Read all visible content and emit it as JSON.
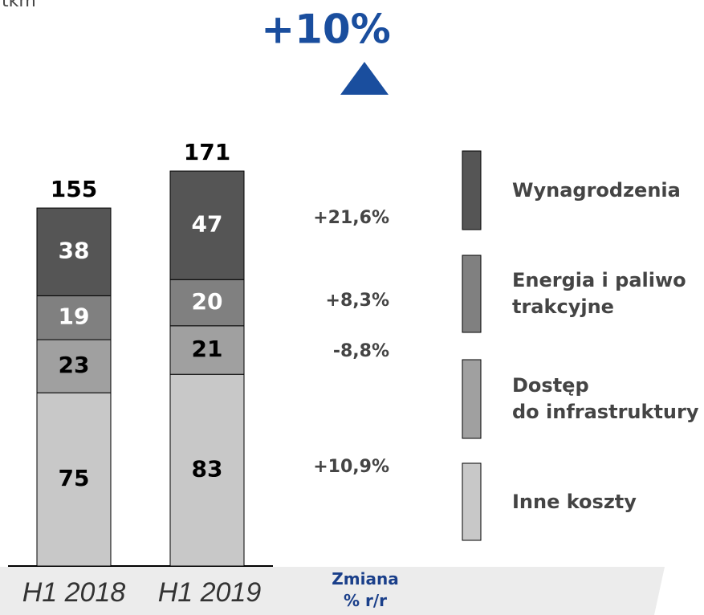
{
  "chart_data": {
    "type": "stacked_bar",
    "subtitle": "tkm",
    "title": "+10%",
    "categories": [
      "H1 2018",
      "H1 2019"
    ],
    "totals": [
      155,
      171
    ],
    "change_header": "Zmiana\n% r/r",
    "series": [
      {
        "name": "Inne koszty",
        "color": "#c8c8c8",
        "label_color": "#000000",
        "values": [
          75,
          83
        ],
        "change": "+10,9%"
      },
      {
        "name": "Dostęp\ndo infrastruktury",
        "color": "#a0a0a0",
        "label_color": "#000000",
        "values": [
          23,
          21
        ],
        "change": "-8,8%"
      },
      {
        "name": "Energia i paliwo\ntrakcyjne",
        "color": "#808080",
        "label_color": "#ffffff",
        "values": [
          19,
          20
        ],
        "change": "+8,3%"
      },
      {
        "name": "Wynagrodzenia",
        "color": "#555555",
        "label_color": "#ffffff",
        "values": [
          38,
          47
        ],
        "change": "+21,6%"
      }
    ]
  }
}
